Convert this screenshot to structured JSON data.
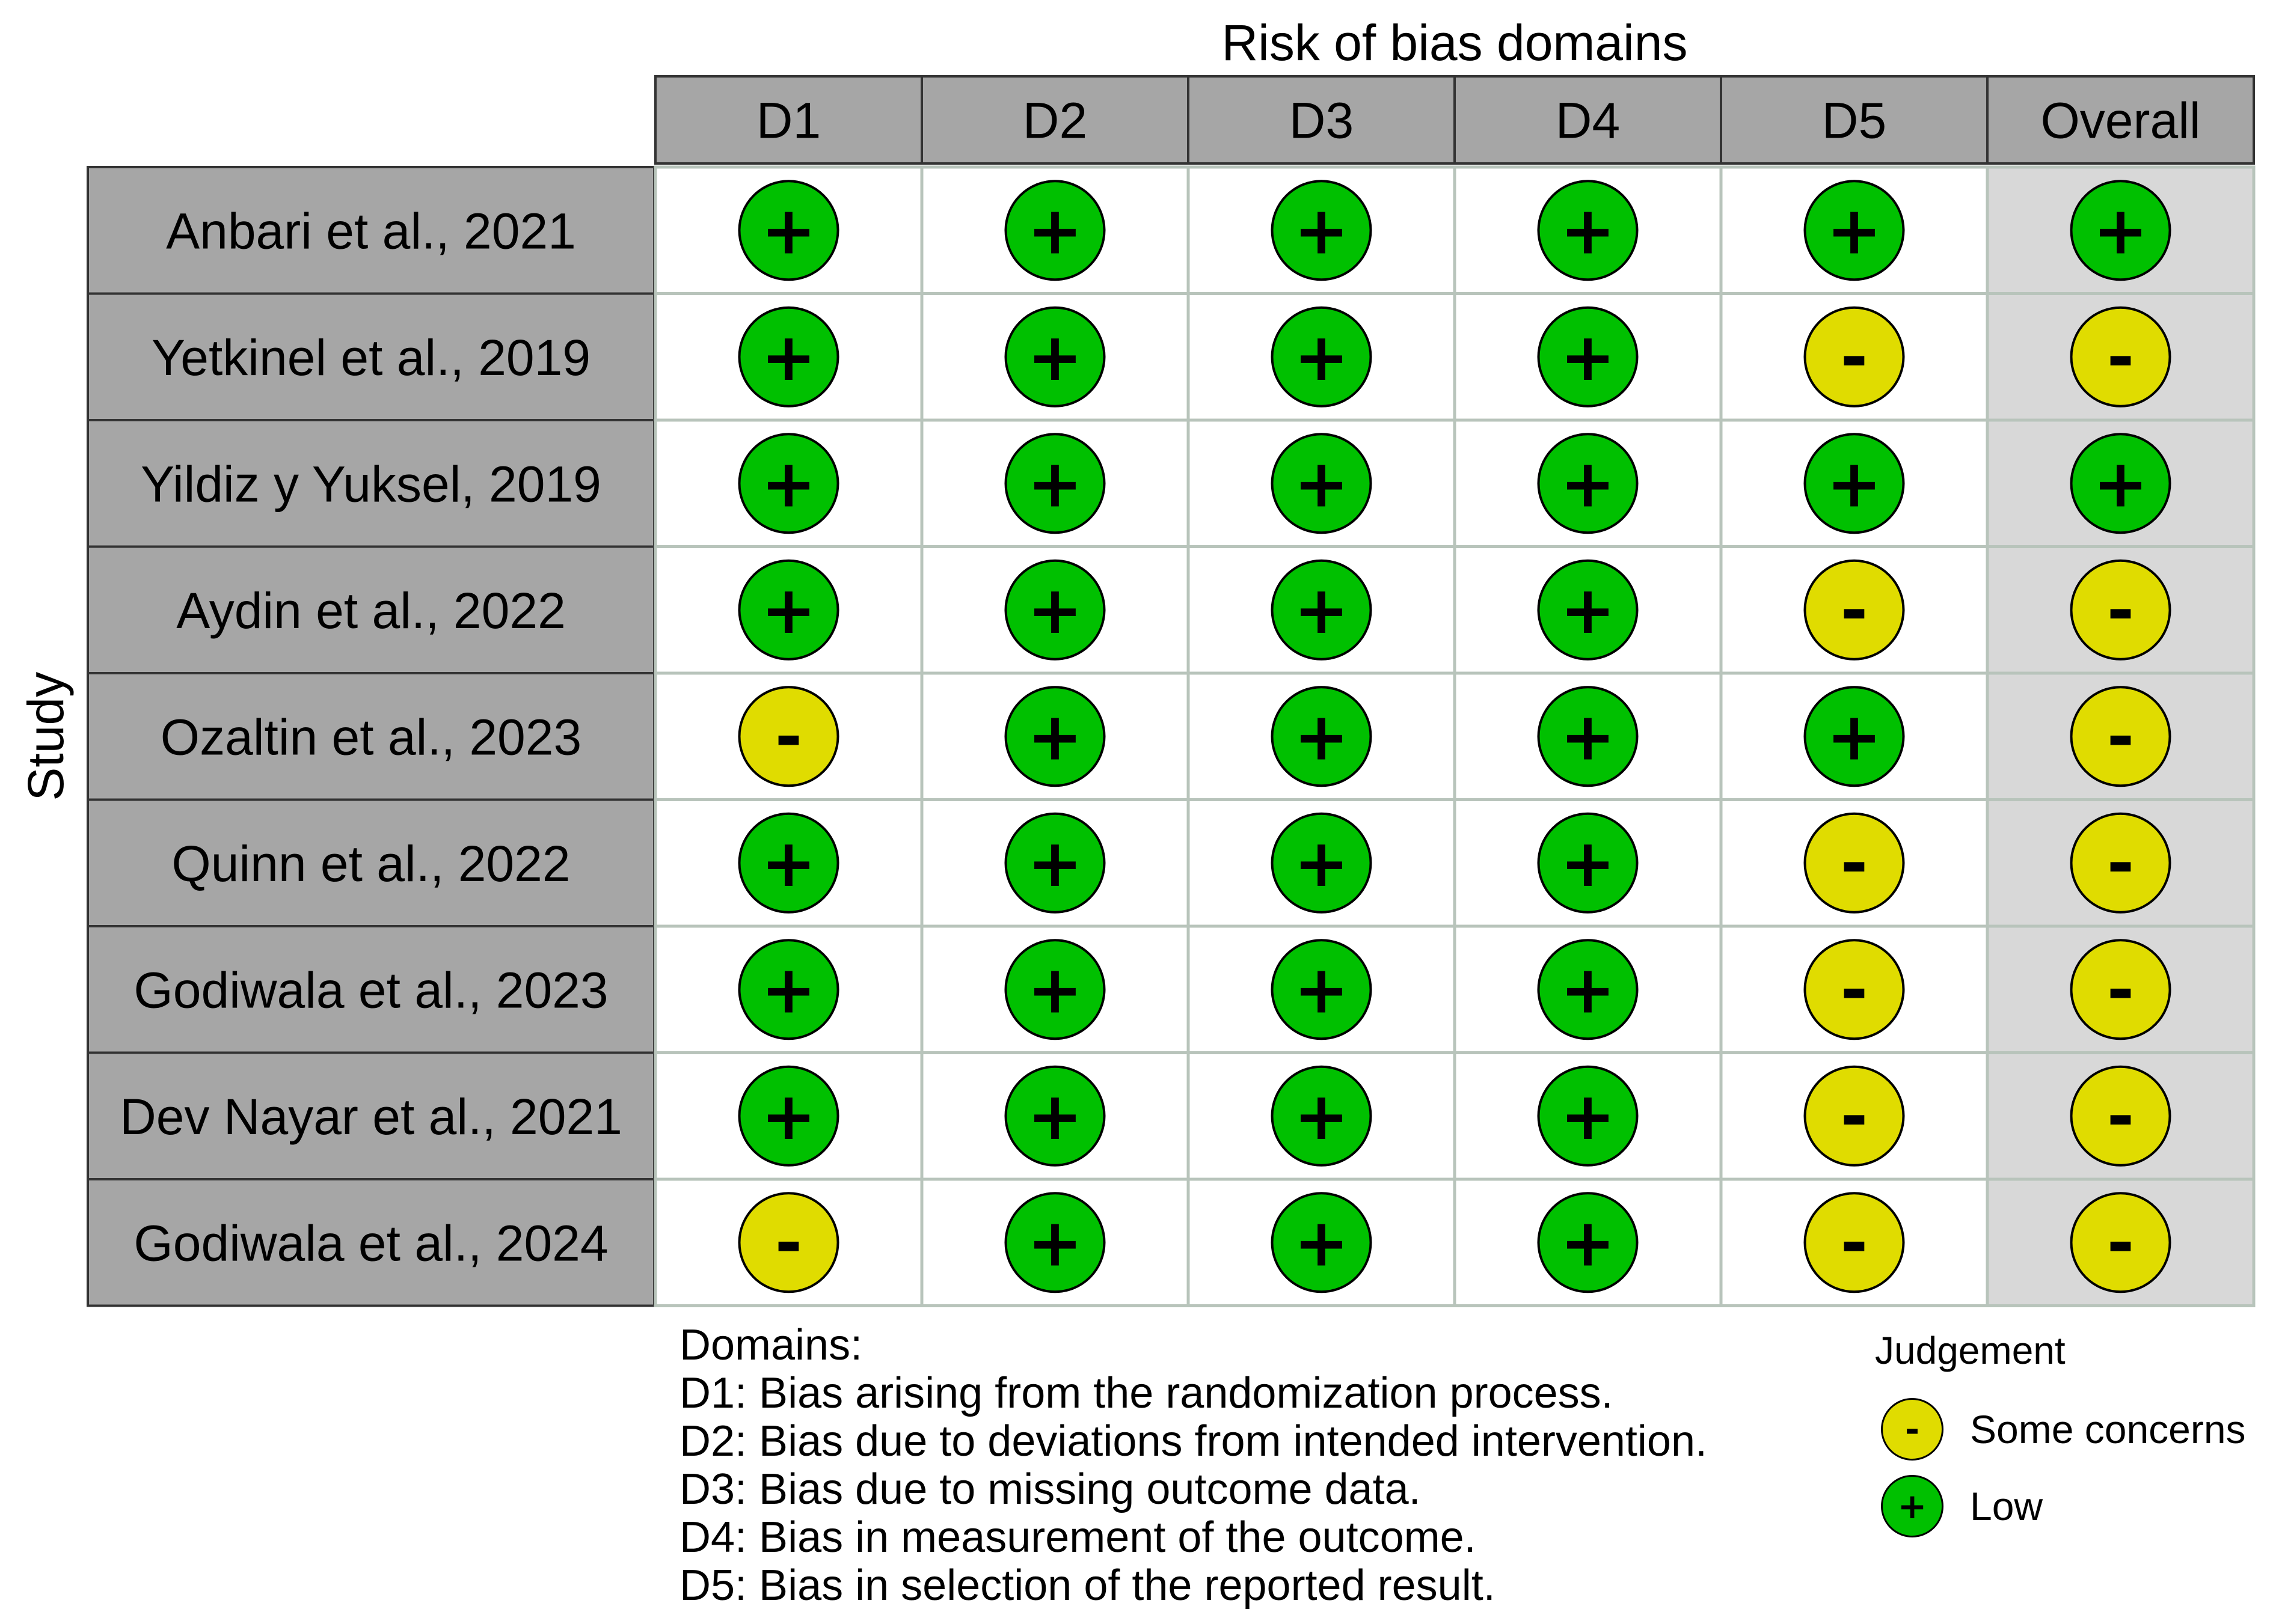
{
  "chart_data": {
    "type": "table",
    "title": "Risk of bias domains",
    "ylabel": "Study",
    "columns": [
      "D1",
      "D2",
      "D3",
      "D4",
      "D5",
      "Overall"
    ],
    "rows": [
      {
        "study": "Anbari et al., 2021",
        "judgements": [
          "Low",
          "Low",
          "Low",
          "Low",
          "Low",
          "Low"
        ]
      },
      {
        "study": "Yetkinel et al., 2019",
        "judgements": [
          "Low",
          "Low",
          "Low",
          "Low",
          "Some concerns",
          "Some concerns"
        ]
      },
      {
        "study": "Yildiz y Yuksel, 2019",
        "judgements": [
          "Low",
          "Low",
          "Low",
          "Low",
          "Low",
          "Low"
        ]
      },
      {
        "study": "Aydin et al., 2022",
        "judgements": [
          "Low",
          "Low",
          "Low",
          "Low",
          "Some concerns",
          "Some concerns"
        ]
      },
      {
        "study": "Ozaltin et al., 2023",
        "judgements": [
          "Some concerns",
          "Low",
          "Low",
          "Low",
          "Low",
          "Some concerns"
        ]
      },
      {
        "study": "Quinn et al., 2022",
        "judgements": [
          "Low",
          "Low",
          "Low",
          "Low",
          "Some concerns",
          "Some concerns"
        ]
      },
      {
        "study": "Godiwala et al., 2023",
        "judgements": [
          "Low",
          "Low",
          "Low",
          "Low",
          "Some concerns",
          "Some concerns"
        ]
      },
      {
        "study": "Dev Nayar et al., 2021",
        "judgements": [
          "Low",
          "Low",
          "Low",
          "Low",
          "Some concerns",
          "Some concerns"
        ]
      },
      {
        "study": "Godiwala et al., 2024",
        "judgements": [
          "Some concerns",
          "Low",
          "Low",
          "Low",
          "Some concerns",
          "Some concerns"
        ]
      }
    ],
    "judgement_styles": {
      "Low": {
        "symbol": "+",
        "color": "#00c000"
      },
      "Some concerns": {
        "symbol": "-",
        "color": "#e0dc00"
      }
    },
    "colors": {
      "header_fill": "#a6a6a6",
      "overall_column_fill": "#d8d8d8",
      "cell_border": "#b8c4bb"
    }
  },
  "legend": {
    "domains_title": "Domains:",
    "domains": [
      "D1: Bias arising from the randomization process.",
      "D2: Bias due to deviations from intended intervention.",
      "D3: Bias due to missing outcome data.",
      "D4: Bias in measurement of the outcome.",
      "D5: Bias in selection of the reported result."
    ],
    "judgement_title": "Judgement",
    "judgement_items": [
      {
        "symbol": "-",
        "label": "Some concerns",
        "color": "#e0dc00"
      },
      {
        "symbol": "+",
        "label": "Low",
        "color": "#00c000"
      }
    ]
  }
}
